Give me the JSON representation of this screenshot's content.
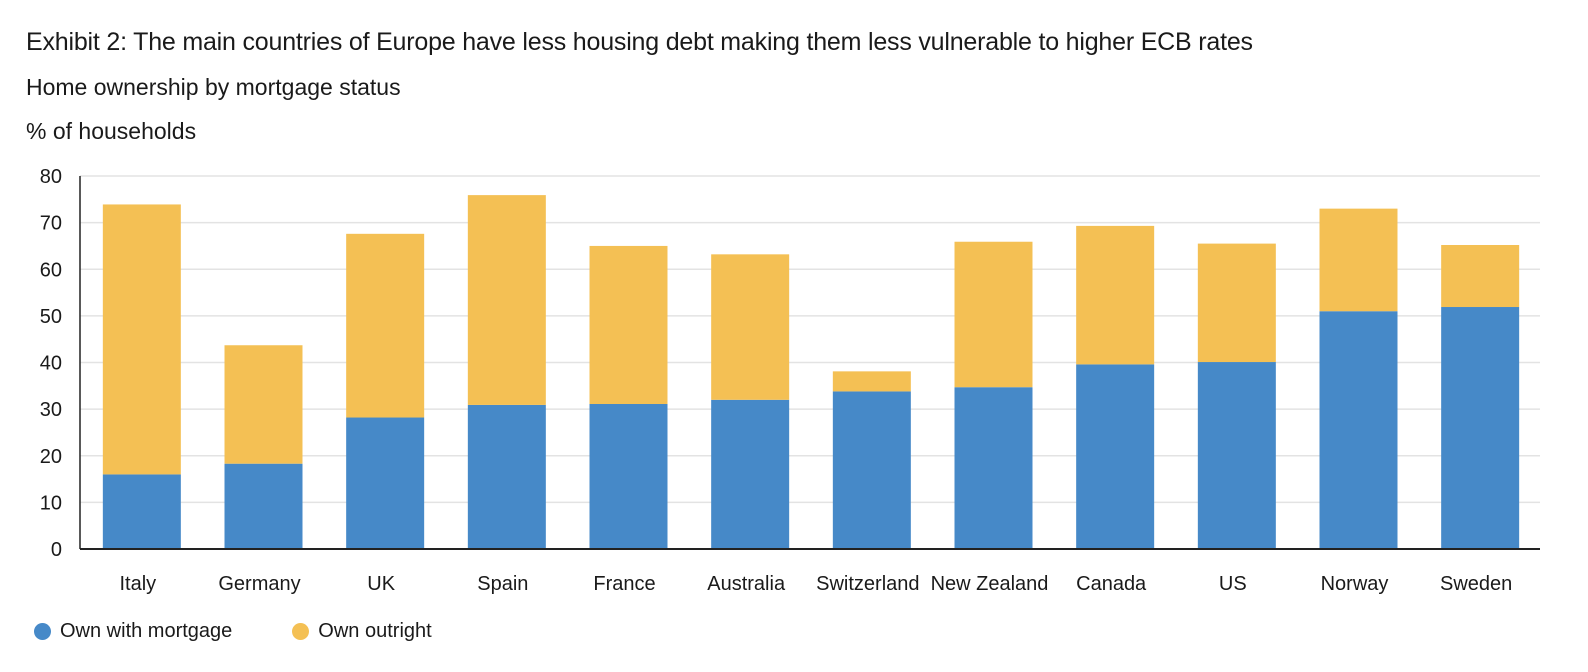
{
  "header": {
    "title": "Exhibit 2: The main countries of Europe have less housing debt making them less vulnerable to higher ECB rates",
    "subtitle": "Home ownership by mortgage status",
    "unit_label": "% of households"
  },
  "colors": {
    "mortgage": "#4689c8",
    "outright": "#f4c054",
    "grid": "#e3e3e3",
    "axis": "#222222"
  },
  "chart_data": {
    "type": "bar",
    "stacked": true,
    "categories": [
      "Italy",
      "Germany",
      "UK",
      "Spain",
      "France",
      "Australia",
      "Switzerland",
      "New Zealand",
      "Canada",
      "US",
      "Norway",
      "Sweden"
    ],
    "series": [
      {
        "name": "Own with mortgage",
        "values": [
          16,
          18.3,
          28.2,
          30.9,
          31.1,
          32,
          33.8,
          34.7,
          39.6,
          40.1,
          51,
          51.9
        ]
      },
      {
        "name": "Own outright",
        "values": [
          57.9,
          25.4,
          39.4,
          45,
          33.9,
          31.2,
          4.3,
          31.2,
          29.7,
          25.4,
          22,
          13.3
        ]
      }
    ],
    "ylim": [
      0,
      80
    ],
    "yticks": [
      "0",
      "10",
      "20",
      "30",
      "40",
      "50",
      "60",
      "70",
      "80"
    ],
    "grid": true,
    "legend_position": "bottom-left"
  }
}
